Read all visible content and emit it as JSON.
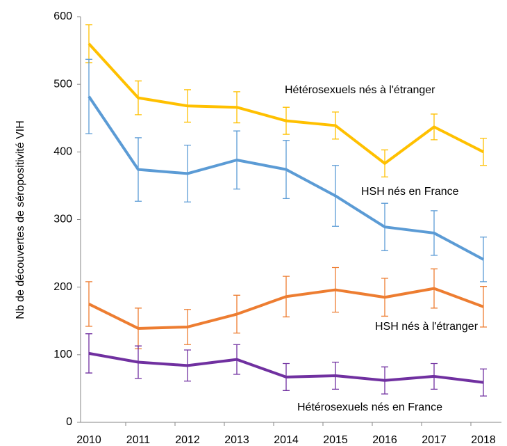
{
  "chart_data": {
    "type": "line",
    "y_label": "Nb de découvertes de séropositivité VIH",
    "categories": [
      "2010",
      "2011",
      "2012",
      "2013",
      "2014",
      "2015",
      "2016",
      "2017",
      "2018"
    ],
    "ylim": [
      0,
      600
    ],
    "yticks": [
      0,
      100,
      200,
      300,
      400,
      500,
      600
    ],
    "grid": false,
    "series": [
      {
        "name": "Hétérosexuels nés à l'étranger",
        "color": "#FFC000",
        "values": [
          560,
          480,
          468,
          466,
          446,
          439,
          383,
          437,
          400
        ],
        "errors": [
          28,
          25,
          24,
          23,
          20,
          20,
          20,
          19,
          20
        ]
      },
      {
        "name": "HSH nés en France",
        "color": "#5B9BD5",
        "values": [
          482,
          374,
          368,
          388,
          374,
          335,
          289,
          280,
          241
        ],
        "errors": [
          55,
          47,
          42,
          43,
          43,
          45,
          35,
          33,
          33
        ]
      },
      {
        "name": "HSH nés à l'étranger",
        "color": "#ED7D31",
        "values": [
          175,
          139,
          141,
          160,
          186,
          196,
          185,
          198,
          171
        ],
        "errors": [
          33,
          30,
          26,
          28,
          30,
          33,
          28,
          29,
          30
        ]
      },
      {
        "name": "Hétérosexuels nés en France",
        "color": "#7030A0",
        "values": [
          102,
          89,
          84,
          93,
          67,
          69,
          62,
          68,
          59
        ],
        "errors": [
          29,
          24,
          23,
          22,
          20,
          20,
          20,
          19,
          20
        ]
      }
    ]
  }
}
